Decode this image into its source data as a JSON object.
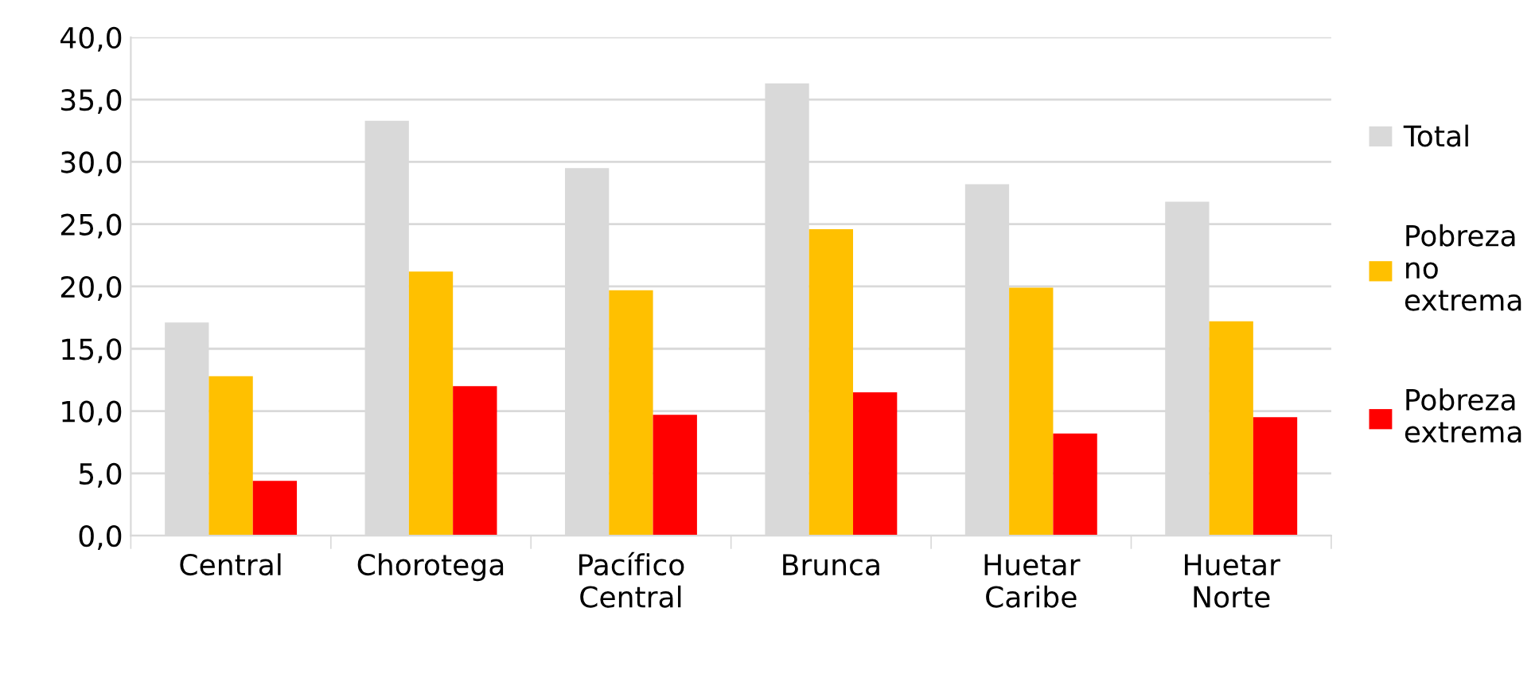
{
  "chart_data": {
    "type": "bar",
    "categories": [
      "Central",
      "Chorotega",
      "Pacífico Central",
      "Brunca",
      "Huetar Caribe",
      "Huetar Norte"
    ],
    "series": [
      {
        "name": "Total",
        "color": "#d9d9d9",
        "values": [
          17.1,
          33.3,
          29.5,
          36.3,
          28.2,
          26.8
        ]
      },
      {
        "name": "Pobreza no extrema",
        "color": "#ffc000",
        "values": [
          12.8,
          21.2,
          19.7,
          24.6,
          19.9,
          17.2
        ]
      },
      {
        "name": "Pobreza extrema",
        "color": "#ff0000",
        "values": [
          4.4,
          12.0,
          9.7,
          11.5,
          8.2,
          9.5
        ]
      }
    ],
    "ylim": [
      0,
      40
    ],
    "yticks": [
      {
        "value": 0,
        "label": "0,0"
      },
      {
        "value": 5,
        "label": "5,0"
      },
      {
        "value": 10,
        "label": "10,0"
      },
      {
        "value": 15,
        "label": "15,0"
      },
      {
        "value": 20,
        "label": "20,0"
      },
      {
        "value": 25,
        "label": "25,0"
      },
      {
        "value": 30,
        "label": "30,0"
      },
      {
        "value": 35,
        "label": "35,0"
      },
      {
        "value": 40,
        "label": "40,0"
      }
    ],
    "grid": "y",
    "legend": "right"
  }
}
